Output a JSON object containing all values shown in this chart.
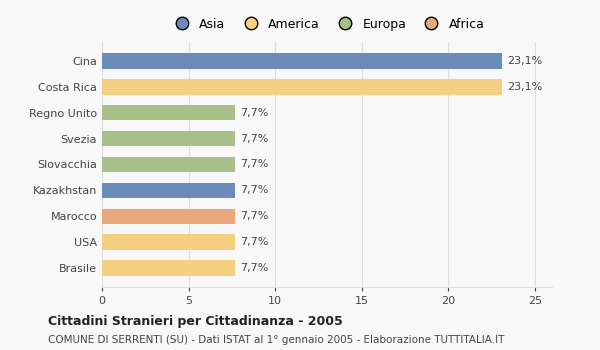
{
  "countries": [
    "Brasile",
    "USA",
    "Marocco",
    "Kazakhstan",
    "Slovacchia",
    "Svezia",
    "Regno Unito",
    "Costa Rica",
    "Cina"
  ],
  "values": [
    7.7,
    7.7,
    7.7,
    7.7,
    7.7,
    7.7,
    7.7,
    23.1,
    23.1
  ],
  "labels": [
    "7,7%",
    "7,7%",
    "7,7%",
    "7,7%",
    "7,7%",
    "7,7%",
    "7,7%",
    "23,1%",
    "23,1%"
  ],
  "colors": [
    "#f5d080",
    "#f5d080",
    "#e8a87c",
    "#6b8cba",
    "#a8bf8a",
    "#a8bf8a",
    "#a8bf8a",
    "#f5d080",
    "#6b8cba"
  ],
  "legend": [
    {
      "label": "Asia",
      "color": "#6b8cba"
    },
    {
      "label": "America",
      "color": "#f5d080"
    },
    {
      "label": "Europa",
      "color": "#a8bf8a"
    },
    {
      "label": "Africa",
      "color": "#e8a87c"
    }
  ],
  "xlim": [
    0,
    26
  ],
  "xticks": [
    0,
    5,
    10,
    15,
    20,
    25
  ],
  "title_bold": "Cittadini Stranieri per Cittadinanza - 2005",
  "subtitle": "COMUNE DI SERRENTI (SU) - Dati ISTAT al 1° gennaio 2005 - Elaborazione TUTTITALIA.IT",
  "bg_color": "#f8f8f8",
  "grid_color": "#dddddd"
}
